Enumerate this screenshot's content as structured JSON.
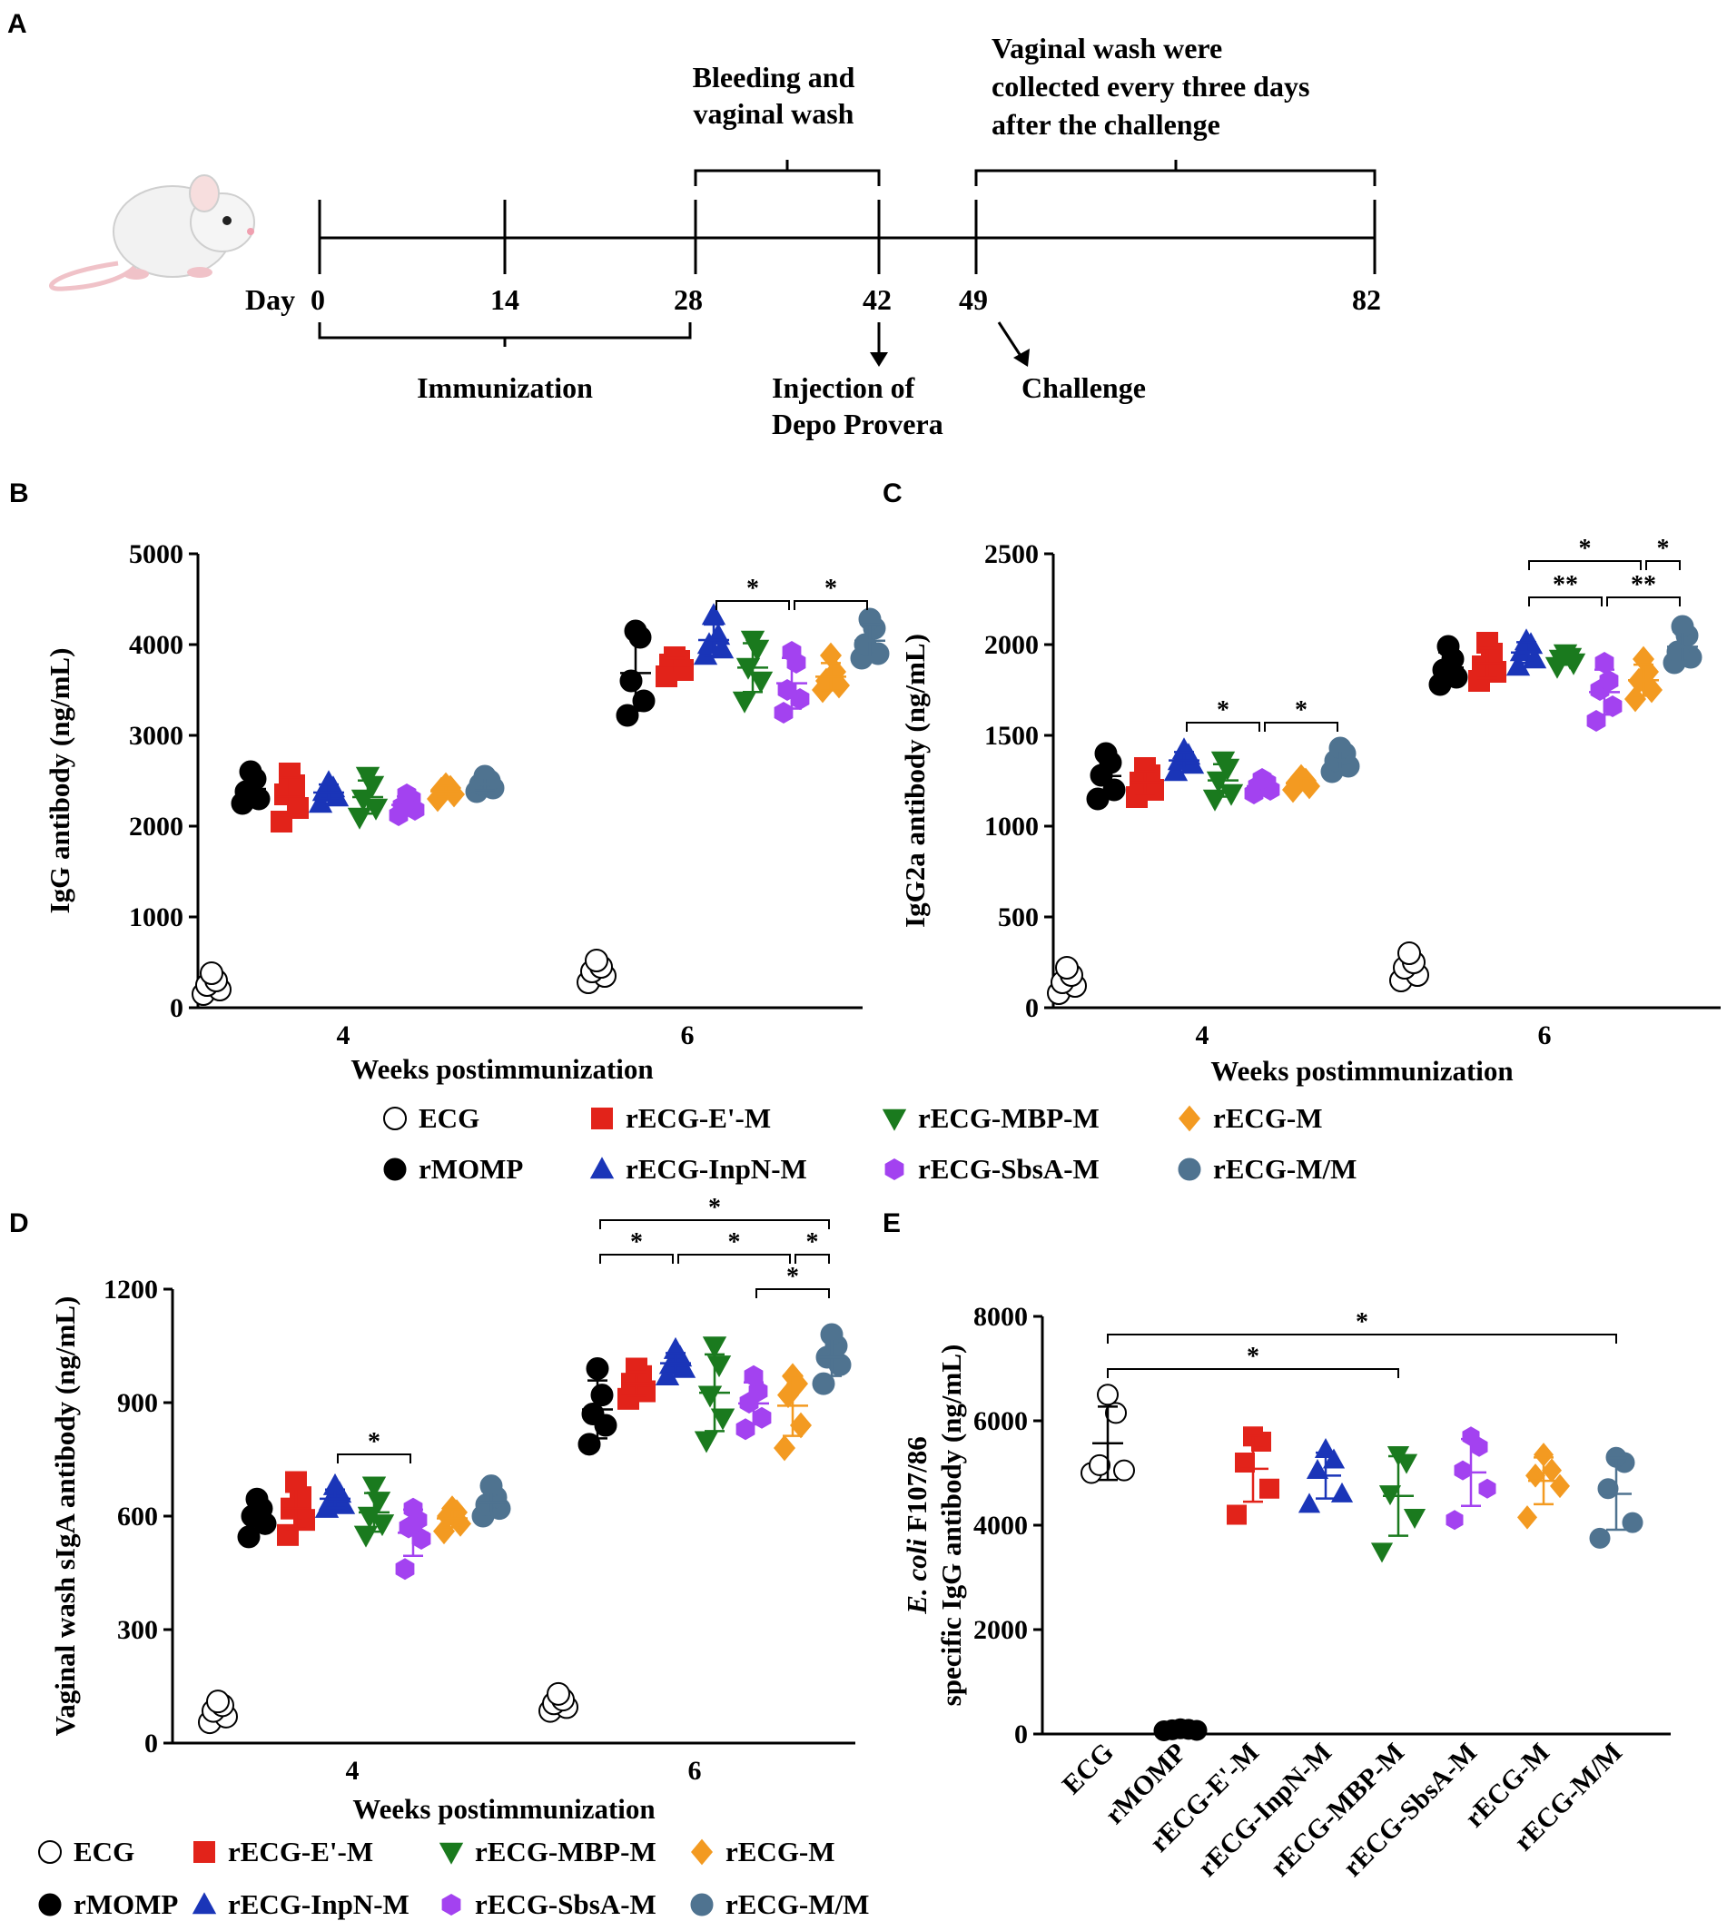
{
  "panels": [
    "A",
    "B",
    "C",
    "D",
    "E"
  ],
  "timeline": {
    "day_label": "Day",
    "ticks": [
      "0",
      "14",
      "28",
      "42",
      "49",
      "82"
    ],
    "immunization": "Immunization",
    "bleeding": [
      "Bleeding  and",
      "vaginal wash"
    ],
    "vaginal_note": [
      "Vaginal wash were",
      "collected every three days",
      "after the challenge"
    ],
    "injection": [
      "Injection of",
      "Depo Provera"
    ],
    "challenge": "Challenge"
  },
  "groups": [
    {
      "name": "ECG",
      "color": "#ffffff",
      "marker": "circle-open"
    },
    {
      "name": "rMOMP",
      "color": "#000000",
      "marker": "circle"
    },
    {
      "name": "rECG-E'-M",
      "color": "#e2231a",
      "marker": "square"
    },
    {
      "name": "rECG-InpN-M",
      "color": "#1a35b8",
      "marker": "triangle-up"
    },
    {
      "name": "rECG-MBP-M",
      "color": "#1a7a1e",
      "marker": "triangle-down"
    },
    {
      "name": "rECG-SbsA-M",
      "color": "#a342f0",
      "marker": "hexagon"
    },
    {
      "name": "rECG-M",
      "color": "#f39a21",
      "marker": "diamond"
    },
    {
      "name": "rECG-M/M",
      "color": "#4f7390",
      "marker": "circle"
    }
  ],
  "chart_data": [
    {
      "id": "B",
      "type": "scatter",
      "xlabel": "Weeks postimmunization",
      "ylabel": "IgG antibody (ng/mL)",
      "ylim": [
        0,
        5000
      ],
      "yticks": [
        0,
        1000,
        2000,
        3000,
        4000,
        5000
      ],
      "categories": [
        "4",
        "6"
      ],
      "series": [
        {
          "name": "ECG",
          "values": [
            [
              150,
              200,
              250,
              300,
              380
            ],
            [
              280,
              350,
              400,
              450,
              520
            ]
          ]
        },
        {
          "name": "rMOMP",
          "values": [
            [
              2250,
              2300,
              2380,
              2520,
              2600
            ],
            [
              3220,
              3380,
              3600,
              4080,
              4150
            ]
          ]
        },
        {
          "name": "rECG-E'-M",
          "values": [
            [
              2050,
              2200,
              2350,
              2450,
              2580
            ],
            [
              3650,
              3720,
              3780,
              3820,
              3860
            ]
          ]
        },
        {
          "name": "rECG-InpN-M",
          "values": [
            [
              2250,
              2320,
              2380,
              2420,
              2480
            ],
            [
              3880,
              3950,
              4000,
              4100,
              4320
            ]
          ]
        },
        {
          "name": "rECG-MBP-M",
          "values": [
            [
              2100,
              2200,
              2300,
              2450,
              2550
            ],
            [
              3380,
              3600,
              3750,
              3950,
              4050
            ]
          ]
        },
        {
          "name": "rECG-SbsA-M",
          "values": [
            [
              2120,
              2180,
              2220,
              2300,
              2350
            ],
            [
              3250,
              3400,
              3500,
              3800,
              3920
            ]
          ]
        },
        {
          "name": "rECG-M",
          "values": [
            [
              2300,
              2350,
              2400,
              2420,
              2450
            ],
            [
              3500,
              3550,
              3600,
              3700,
              3880
            ]
          ]
        },
        {
          "name": "rECG-M/M",
          "values": [
            [
              2380,
              2420,
              2460,
              2500,
              2550
            ],
            [
              3850,
              3900,
              4000,
              4180,
              4280
            ]
          ]
        }
      ],
      "brackets": [
        {
          "week": "6",
          "from": "rECG-InpN-M",
          "to": "rECG-SbsA-M",
          "label": "*",
          "level": 0
        },
        {
          "week": "6",
          "from": "rECG-SbsA-M",
          "to": "rECG-M/M",
          "label": "*",
          "level": 0
        }
      ]
    },
    {
      "id": "C",
      "type": "scatter",
      "xlabel": "Weeks postimmunization",
      "ylabel": "IgG2a antibody (ng/mL)",
      "ylim": [
        0,
        2500
      ],
      "yticks": [
        0,
        500,
        1000,
        1500,
        2000,
        2500
      ],
      "categories": [
        "4",
        "6"
      ],
      "series": [
        {
          "name": "ECG",
          "values": [
            [
              80,
              120,
              140,
              180,
              220
            ],
            [
              150,
              180,
              220,
              250,
              300
            ]
          ]
        },
        {
          "name": "rMOMP",
          "values": [
            [
              1150,
              1200,
              1280,
              1350,
              1400
            ],
            [
              1780,
              1820,
              1860,
              1920,
              1990
            ]
          ]
        },
        {
          "name": "rECG-E'-M",
          "values": [
            [
              1160,
              1200,
              1240,
              1280,
              1320
            ],
            [
              1800,
              1850,
              1880,
              1950,
              2010
            ]
          ]
        },
        {
          "name": "rECG-InpN-M",
          "values": [
            [
              1300,
              1340,
              1360,
              1390,
              1420
            ],
            [
              1880,
              1920,
              1960,
              2000,
              2020
            ]
          ]
        },
        {
          "name": "rECG-MBP-M",
          "values": [
            [
              1150,
              1180,
              1250,
              1320,
              1360
            ],
            [
              1880,
              1900,
              1920,
              1930,
              1950
            ]
          ]
        },
        {
          "name": "rECG-SbsA-M",
          "values": [
            [
              1180,
              1200,
              1220,
              1240,
              1260
            ],
            [
              1580,
              1660,
              1750,
              1800,
              1900
            ]
          ]
        },
        {
          "name": "rECG-M",
          "values": [
            [
              1200,
              1220,
              1240,
              1250,
              1270
            ],
            [
              1700,
              1750,
              1800,
              1850,
              1920
            ]
          ]
        },
        {
          "name": "rECG-M/M",
          "values": [
            [
              1300,
              1330,
              1360,
              1400,
              1430
            ],
            [
              1900,
              1930,
              1960,
              2050,
              2100
            ]
          ]
        }
      ],
      "brackets": [
        {
          "week": "4",
          "from": "rECG-InpN-M",
          "to": "rECG-SbsA-M",
          "label": "*",
          "level": 0
        },
        {
          "week": "4",
          "from": "rECG-SbsA-M",
          "to": "rECG-M/M",
          "label": "*",
          "level": 0
        },
        {
          "week": "6",
          "from": "rECG-InpN-M",
          "to": "rECG-SbsA-M",
          "label": "**",
          "level": 0
        },
        {
          "week": "6",
          "from": "rECG-SbsA-M",
          "to": "rECG-M/M",
          "label": "**",
          "level": 0
        },
        {
          "week": "6",
          "from": "rECG-InpN-M",
          "to": "rECG-M",
          "label": "*",
          "level": 1
        },
        {
          "week": "6",
          "from": "rECG-M",
          "to": "rECG-M/M",
          "label": "*",
          "level": 1
        }
      ]
    },
    {
      "id": "D",
      "type": "scatter",
      "xlabel": "Weeks postimmunization",
      "ylabel": "Vaginal wash sIgA  antibody (ng/mL)",
      "ylim": [
        0,
        1200
      ],
      "yticks": [
        0,
        300,
        600,
        900,
        1200
      ],
      "categories": [
        "4",
        "6"
      ],
      "series": [
        {
          "name": "ECG",
          "values": [
            [
              55,
              70,
              85,
              100,
              110
            ],
            [
              85,
              95,
              105,
              115,
              130
            ]
          ]
        },
        {
          "name": "rMOMP",
          "values": [
            [
              545,
              580,
              600,
              620,
              645
            ],
            [
              790,
              840,
              870,
              920,
              990
            ]
          ]
        },
        {
          "name": "rECG-E'-M",
          "values": [
            [
              550,
              590,
              620,
              650,
              690
            ],
            [
              910,
              930,
              950,
              970,
              990
            ]
          ]
        },
        {
          "name": "rECG-InpN-M",
          "values": [
            [
              620,
              630,
              640,
              660,
              680
            ],
            [
              970,
              990,
              1000,
              1020,
              1040
            ]
          ]
        },
        {
          "name": "rECG-MBP-M",
          "values": [
            [
              550,
              580,
              600,
              640,
              680
            ],
            [
              800,
              860,
              920,
              1000,
              1050
            ]
          ]
        },
        {
          "name": "rECG-SbsA-M",
          "values": [
            [
              460,
              540,
              570,
              590,
              620
            ],
            [
              830,
              860,
              900,
              930,
              970
            ]
          ]
        },
        {
          "name": "rECG-M",
          "values": [
            [
              560,
              580,
              600,
              610,
              620
            ],
            [
              780,
              840,
              920,
              950,
              970
            ]
          ]
        },
        {
          "name": "rECG-M/M",
          "values": [
            [
              600,
              620,
              630,
              650,
              680
            ],
            [
              950,
              1000,
              1020,
              1050,
              1080
            ]
          ]
        }
      ],
      "brackets": [
        {
          "week": "4",
          "from": "rECG-InpN-M",
          "to": "rECG-SbsA-M",
          "label": "*",
          "level": 0
        },
        {
          "week": "6",
          "from": "rECG-SbsA-M",
          "to": "rECG-M/M",
          "label": "*",
          "level": 0
        },
        {
          "week": "6",
          "from": "rMOMP",
          "to": "rECG-InpN-M",
          "label": "*",
          "level": 1
        },
        {
          "week": "6",
          "from": "rECG-InpN-M",
          "to": "rECG-M",
          "label": "*",
          "level": 1
        },
        {
          "week": "6",
          "from": "rECG-M",
          "to": "rECG-M/M",
          "label": "*",
          "level": 1
        },
        {
          "week": "6",
          "from": "rMOMP",
          "to": "rECG-M/M",
          "label": "*",
          "level": 2
        }
      ]
    },
    {
      "id": "E",
      "type": "scatter",
      "ylabel_italic": "E. coli",
      "ylabel_line1": " F107/86",
      "ylabel_line2": "specific IgG antibody (ng/mL)",
      "ylim": [
        0,
        8000
      ],
      "yticks": [
        0,
        2000,
        4000,
        6000,
        8000
      ],
      "categories": [
        "ECG",
        "rMOMP",
        "rECG-E'-M",
        "rECG-InpN-M",
        "rECG-MBP-M",
        "rECG-SbsA-M",
        "rECG-M",
        "rECG-M/M"
      ],
      "values": [
        [
          5000,
          5050,
          5150,
          6150,
          6500
        ],
        [
          60,
          70,
          80,
          90,
          100
        ],
        [
          4200,
          4700,
          5200,
          5600,
          5700
        ],
        [
          4400,
          4600,
          5050,
          5250,
          5450
        ],
        [
          3500,
          4150,
          4600,
          5200,
          5350
        ],
        [
          4100,
          4700,
          5050,
          5500,
          5700
        ],
        [
          4150,
          4750,
          4950,
          5050,
          5350
        ],
        [
          3750,
          4050,
          4700,
          5200,
          5300
        ]
      ],
      "brackets": [
        {
          "from": "ECG",
          "to": "rECG-MBP-M",
          "label": "*",
          "level": 0
        },
        {
          "from": "ECG",
          "to": "rECG-M/M",
          "label": "*",
          "level": 1
        }
      ]
    }
  ]
}
